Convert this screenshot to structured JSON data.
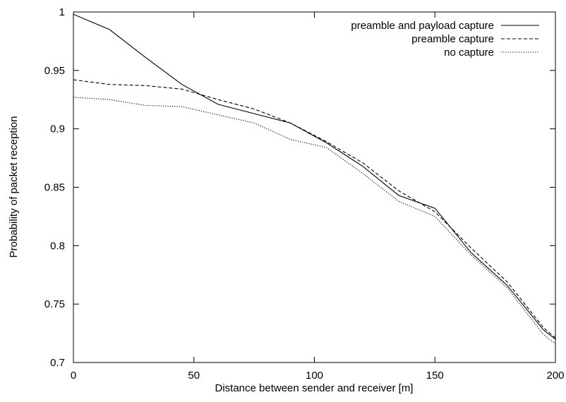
{
  "chart_data": {
    "type": "line",
    "title": "",
    "xlabel": "Distance between sender and receiver [m]",
    "ylabel": "Probability of packet reception",
    "xlim": [
      0,
      200
    ],
    "ylim": [
      0.7,
      1.0
    ],
    "x_ticks": [
      "0",
      "50",
      "100",
      "150",
      "200"
    ],
    "y_ticks": [
      "0.7",
      "0.75",
      "0.8",
      "0.85",
      "0.9",
      "0.95",
      "1"
    ],
    "grid": false,
    "legend_position": "top-right",
    "series": [
      {
        "name": "preamble and payload capture",
        "line_style": "solid",
        "points": [
          [
            0,
            0.998
          ],
          [
            15,
            0.985
          ],
          [
            30,
            0.961
          ],
          [
            45,
            0.938
          ],
          [
            60,
            0.921
          ],
          [
            75,
            0.913
          ],
          [
            90,
            0.905
          ],
          [
            105,
            0.888
          ],
          [
            120,
            0.868
          ],
          [
            135,
            0.843
          ],
          [
            150,
            0.832
          ],
          [
            165,
            0.794
          ],
          [
            180,
            0.766
          ],
          [
            195,
            0.728
          ],
          [
            200,
            0.72
          ]
        ]
      },
      {
        "name": "preamble capture",
        "line_style": "dashed",
        "points": [
          [
            0,
            0.942
          ],
          [
            15,
            0.938
          ],
          [
            30,
            0.937
          ],
          [
            45,
            0.934
          ],
          [
            60,
            0.925
          ],
          [
            75,
            0.917
          ],
          [
            90,
            0.905
          ],
          [
            105,
            0.889
          ],
          [
            120,
            0.871
          ],
          [
            135,
            0.847
          ],
          [
            150,
            0.829
          ],
          [
            165,
            0.798
          ],
          [
            180,
            0.769
          ],
          [
            195,
            0.73
          ],
          [
            200,
            0.721
          ]
        ]
      },
      {
        "name": "no capture",
        "line_style": "dotted",
        "points": [
          [
            0,
            0.927
          ],
          [
            15,
            0.925
          ],
          [
            30,
            0.92
          ],
          [
            45,
            0.919
          ],
          [
            60,
            0.912
          ],
          [
            75,
            0.905
          ],
          [
            90,
            0.891
          ],
          [
            105,
            0.884
          ],
          [
            120,
            0.862
          ],
          [
            135,
            0.838
          ],
          [
            150,
            0.825
          ],
          [
            165,
            0.792
          ],
          [
            180,
            0.764
          ],
          [
            195,
            0.724
          ],
          [
            200,
            0.716
          ]
        ]
      }
    ]
  }
}
